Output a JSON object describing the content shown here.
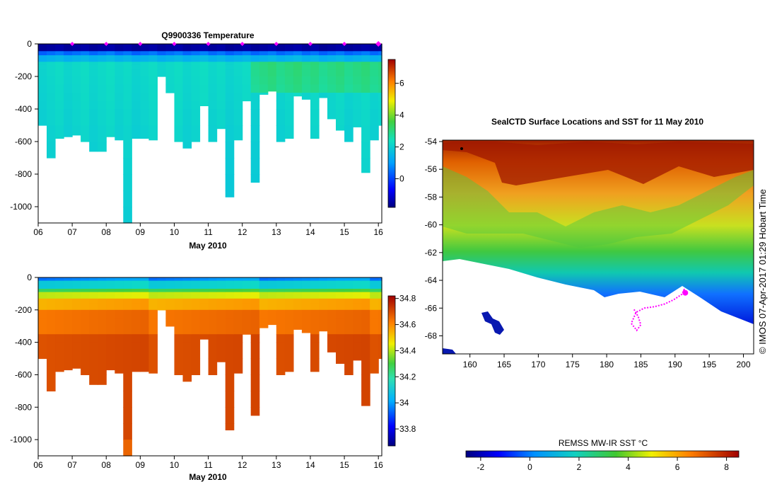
{
  "chart_data": [
    {
      "type": "heatmap",
      "title": "Q9900336  Temperature",
      "xlabel": "May 2010",
      "x_ticks": [
        "06",
        "07",
        "08",
        "09",
        "10",
        "11",
        "12",
        "13",
        "14",
        "15",
        "16"
      ],
      "x_range": [
        6.0,
        16.1
      ],
      "ylim": [
        -1100,
        0
      ],
      "y_ticks": [
        0,
        -200,
        -400,
        -600,
        -800,
        -1000
      ],
      "colorbar_ticks": [
        6,
        4,
        2,
        0
      ],
      "colorbar_range": [
        -1.8,
        7.5
      ],
      "profile_starts": [
        6.0,
        6.25,
        6.5,
        6.75,
        7.0,
        7.25,
        7.5,
        7.75,
        8.0,
        8.25,
        8.5,
        8.75,
        9.0,
        9.25,
        9.5,
        9.75,
        10.0,
        10.25,
        10.5,
        10.75,
        11.0,
        11.25,
        11.5,
        11.75,
        12.0,
        12.25,
        12.5,
        12.75,
        13.0,
        13.25,
        13.5,
        13.75,
        14.0,
        14.25,
        14.5,
        14.75,
        15.0,
        15.25,
        15.5,
        15.75,
        16.0
      ],
      "profile_depths": [
        -500,
        -700,
        -580,
        -570,
        -560,
        -600,
        -660,
        -660,
        -570,
        -590,
        -1100,
        -580,
        -580,
        -590,
        -200,
        -300,
        -600,
        -640,
        -600,
        -380,
        -600,
        -520,
        -940,
        -590,
        -350,
        -850,
        -310,
        -290,
        -600,
        -580,
        -320,
        -340,
        -580,
        -330,
        -460,
        -530,
        -600,
        -510,
        -790,
        -590,
        -500
      ],
      "markers": [
        7.0,
        8.0,
        9.0,
        10.0,
        11.0,
        12.0,
        13.0,
        14.0,
        15.0,
        16.0
      ]
    },
    {
      "type": "heatmap",
      "title": "",
      "xlabel": "May 2010",
      "x_ticks": [
        "06",
        "07",
        "08",
        "09",
        "10",
        "11",
        "12",
        "13",
        "14",
        "15",
        "16"
      ],
      "x_range": [
        6.0,
        16.1
      ],
      "ylim": [
        -1100,
        0
      ],
      "y_ticks": [
        0,
        -200,
        -400,
        -600,
        -800,
        -1000
      ],
      "colorbar_ticks": [
        34.8,
        34.6,
        34.4,
        34.2,
        34,
        33.8
      ],
      "colorbar_range": [
        33.67,
        34.82
      ]
    },
    {
      "type": "heatmap",
      "title": "SealCTD Surface Locations and SST for 11 May 2010",
      "x_ticks": [
        160,
        165,
        170,
        175,
        180,
        185,
        190,
        195,
        200
      ],
      "xlim": [
        156,
        201.5
      ],
      "y_ticks": [
        -54,
        -56,
        -58,
        -60,
        -62,
        -64,
        -66,
        -68
      ],
      "ylim": [
        -69.3,
        -53.9
      ],
      "colorbar_label": "REMSS MW-IR SST °C",
      "colorbar_ticks": [
        -2,
        0,
        2,
        4,
        6,
        8
      ],
      "colorbar_range": [
        -2.6,
        8.5
      ],
      "track": [
        [
          184.0,
          -66.1
        ],
        [
          184.6,
          -66.6
        ],
        [
          185.0,
          -67.2
        ],
        [
          184.4,
          -67.6
        ],
        [
          183.6,
          -67.1
        ],
        [
          184.3,
          -66.3
        ],
        [
          185.5,
          -66.0
        ],
        [
          187.0,
          -65.9
        ],
        [
          188.5,
          -65.7
        ],
        [
          189.8,
          -65.4
        ],
        [
          191.0,
          -65.0
        ],
        [
          191.4,
          -64.6
        ],
        [
          191.2,
          -64.8
        ],
        [
          191.5,
          -64.9
        ]
      ]
    }
  ],
  "credit": "© IMOS 07-Apr-2017 01:29 Hobart Time"
}
